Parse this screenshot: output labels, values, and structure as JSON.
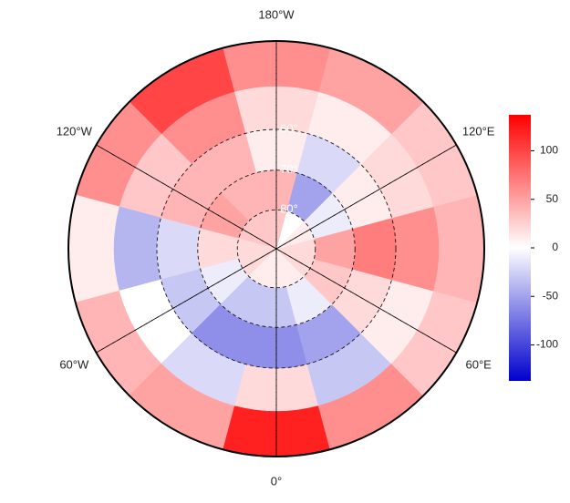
{
  "chart_data": {
    "type": "polar-map",
    "latlim": [
      40,
      90
    ],
    "lat_ticks": [
      {
        "value": 60,
        "label": "60°"
      },
      {
        "value": 70,
        "label": "70°"
      },
      {
        "value": 80,
        "label": "80°"
      }
    ],
    "lon_ticks": [
      {
        "value": 180,
        "label": "180°W"
      },
      {
        "value": 120,
        "label": "120°E"
      },
      {
        "value": 60,
        "label": "60°E"
      },
      {
        "value": 0,
        "label": "0°"
      },
      {
        "value": -60,
        "label": "60°W"
      },
      {
        "value": -120,
        "label": "120°W"
      }
    ],
    "field": {
      "lat_edges": [
        40,
        50,
        60,
        70,
        80,
        90
      ],
      "lon_centers": [
        0,
        30,
        60,
        90,
        120,
        150,
        180,
        210,
        240,
        270,
        300,
        330
      ],
      "values": [
        [
          120,
          60,
          30,
          40,
          30,
          50,
          60,
          100,
          60,
          10,
          40,
          50
        ],
        [
          20,
          -30,
          10,
          60,
          20,
          10,
          20,
          60,
          30,
          -40,
          0,
          -20
        ],
        [
          -60,
          -50,
          20,
          70,
          10,
          -20,
          10,
          40,
          40,
          -20,
          -30,
          -60
        ],
        [
          -30,
          -10,
          30,
          50,
          -10,
          -50,
          40,
          40,
          50,
          20,
          -10,
          -30
        ],
        [
          10,
          10,
          20,
          20,
          10,
          0,
          30,
          30,
          30,
          20,
          20,
          10
        ]
      ]
    },
    "colors": [
      "#0000cd",
      "#ffffff",
      "#ff0000"
    ],
    "clim": [
      -137,
      137
    ],
    "cticks": [
      100,
      50,
      0,
      -50,
      -100
    ]
  }
}
